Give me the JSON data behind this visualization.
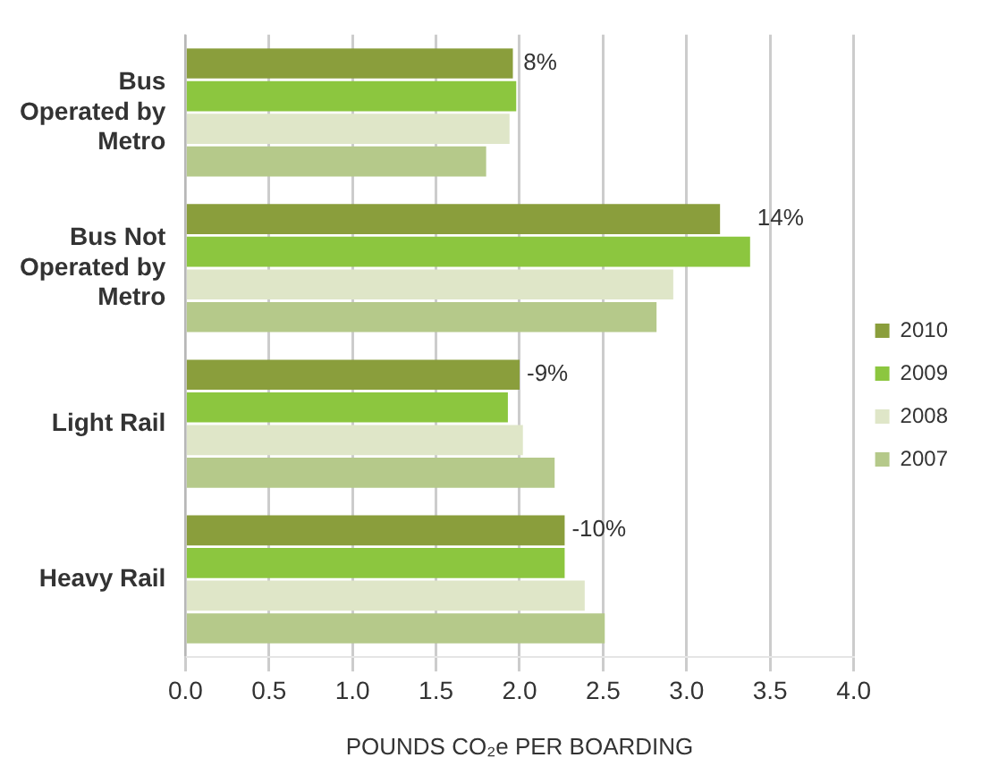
{
  "chart_data": {
    "type": "bar",
    "orientation": "horizontal",
    "xlabel": "POUNDS CO₂e PER BOARDING",
    "categories": [
      "Bus Operated by Metro",
      "Bus Not Operated by Metro",
      "Light Rail",
      "Heavy Rail"
    ],
    "series": [
      {
        "name": "2010",
        "color": "#8a9e3c",
        "values": [
          1.96,
          3.2,
          2.0,
          2.27
        ]
      },
      {
        "name": "2009",
        "color": "#8cc63f",
        "values": [
          1.98,
          3.38,
          1.93,
          2.27
        ]
      },
      {
        "name": "2008",
        "color": "#dfe6c8",
        "values": [
          1.94,
          2.92,
          2.02,
          2.39
        ]
      },
      {
        "name": "2007",
        "color": "#b5c98a",
        "values": [
          1.8,
          2.82,
          2.21,
          2.51
        ]
      }
    ],
    "xlim": [
      0,
      4
    ],
    "xticks": [
      {
        "value": 0,
        "label": "0.0"
      },
      {
        "value": 0.5,
        "label": "0.5"
      },
      {
        "value": 1,
        "label": "1.0"
      },
      {
        "value": 1.5,
        "label": "1.5"
      },
      {
        "value": 2,
        "label": "2.0"
      },
      {
        "value": 2.5,
        "label": "2.5"
      },
      {
        "value": 3,
        "label": "3.0"
      },
      {
        "value": 3.5,
        "label": "3.5"
      },
      {
        "value": 4,
        "label": "4.0"
      }
    ],
    "grid": "x",
    "legend": "right",
    "annotations": [
      {
        "text": "8%",
        "x": 1.98,
        "y": "Bus Operated by Metro"
      },
      {
        "text": "14%",
        "x": 3.38,
        "y": "Bus Not Operated by Metro"
      },
      {
        "text": "-9%",
        "x": 2.0,
        "y": "Light Rail"
      },
      {
        "text": "-10%",
        "x": 2.27,
        "y": "Heavy Rail"
      }
    ]
  }
}
